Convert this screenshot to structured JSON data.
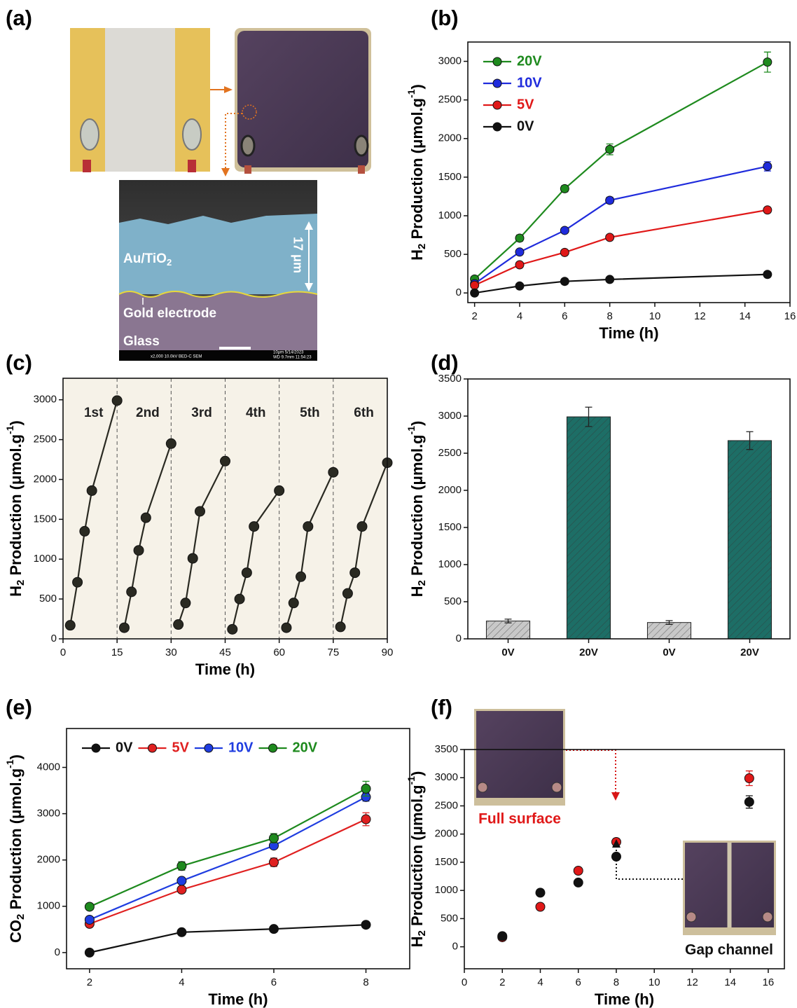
{
  "panel_a": {
    "label": "(a)",
    "sem_labels": {
      "material": [
        "Au/TiO",
        "2"
      ],
      "thickness": "17 μm",
      "electrode": "Gold electrode",
      "substrate": "Glass"
    },
    "sem_footer": {
      "left": "x2,000   10.0kV BED-C   SEM",
      "right": "10μm  5/14/2023",
      "right2": "WD 9.7mm  11:54:23"
    }
  },
  "chart_data": [
    {
      "type": "line",
      "label": "(b)",
      "ylabel": [
        "H",
        "2",
        " Production (μmol.g",
        "-1",
        ")"
      ],
      "xlabel": "Time (h)",
      "x": [
        2,
        4,
        6,
        8,
        15
      ],
      "xlim": [
        1.7,
        16
      ],
      "xticks": [
        2,
        4,
        6,
        8,
        10,
        12,
        14,
        16
      ],
      "ylim": [
        -125,
        3250
      ],
      "yticks": [
        0,
        500,
        1000,
        1500,
        2000,
        2500,
        3000
      ],
      "legend": "upper left",
      "legend_orientation": "vertical",
      "series": [
        {
          "name": "20V",
          "color": "#1e8a1e",
          "values": [
            180,
            710,
            1350,
            1860,
            2990
          ],
          "errors": [
            30,
            40,
            40,
            70,
            130
          ]
        },
        {
          "name": "10V",
          "color": "#1f2bdc",
          "values": [
            120,
            530,
            810,
            1200,
            1640
          ],
          "errors": [
            20,
            30,
            30,
            40,
            60
          ]
        },
        {
          "name": "5V",
          "color": "#e01818",
          "values": [
            100,
            365,
            525,
            720,
            1075
          ],
          "errors": [
            20,
            20,
            20,
            20,
            30
          ]
        },
        {
          "name": "0V",
          "color": "#111111",
          "values": [
            0,
            90,
            150,
            175,
            240
          ],
          "errors": [
            10,
            10,
            10,
            10,
            10
          ]
        }
      ]
    },
    {
      "type": "line",
      "label": "(c)",
      "ylabel": [
        "H",
        "2",
        " Production (μmol.g",
        "-1",
        ")"
      ],
      "xlabel": "Time (h)",
      "xlim": [
        0,
        90
      ],
      "xticks": [
        0,
        15,
        30,
        45,
        60,
        75,
        90
      ],
      "ylim": [
        0,
        3270
      ],
      "yticks": [
        0,
        500,
        1000,
        1500,
        2000,
        2500,
        3000
      ],
      "background": "#f6f2e8",
      "vlines": [
        15,
        30,
        45,
        60,
        75
      ],
      "series": [
        {
          "name": "1st",
          "color": "#2a2a22",
          "x": [
            2,
            4,
            6,
            8,
            15
          ],
          "values": [
            170,
            710,
            1350,
            1860,
            2990
          ]
        },
        {
          "name": "2nd",
          "color": "#2a2a22",
          "x": [
            17,
            19,
            21,
            23,
            30
          ],
          "values": [
            140,
            590,
            1110,
            1520,
            2450
          ]
        },
        {
          "name": "3rd",
          "color": "#2a2a22",
          "x": [
            32,
            34,
            36,
            38,
            45
          ],
          "values": [
            180,
            450,
            1010,
            1600,
            2230
          ]
        },
        {
          "name": "4th",
          "color": "#2a2a22",
          "x": [
            47,
            49,
            51,
            53,
            60
          ],
          "values": [
            120,
            500,
            830,
            1410,
            1860
          ]
        },
        {
          "name": "5th",
          "color": "#2a2a22",
          "x": [
            62,
            64,
            66,
            68,
            75
          ],
          "values": [
            140,
            450,
            780,
            1410,
            2090
          ]
        },
        {
          "name": "6th",
          "color": "#2a2a22",
          "x": [
            77,
            79,
            81,
            83,
            90
          ],
          "values": [
            150,
            570,
            830,
            1410,
            2210
          ]
        }
      ]
    },
    {
      "type": "bar",
      "label": "(d)",
      "ylabel": [
        "H",
        "2",
        " Production (μmol.g",
        "-1",
        ")"
      ],
      "categories": [
        "0V",
        "20V",
        "0V",
        "20V"
      ],
      "values": [
        240,
        2990,
        220,
        2670
      ],
      "errors": [
        25,
        130,
        25,
        120
      ],
      "colors": [
        "#c8c8c8",
        "#1d6e66",
        "#c8c8c8",
        "#1d6e66"
      ],
      "ylim": [
        0,
        3500
      ],
      "yticks": [
        0,
        500,
        1000,
        1500,
        2000,
        2500,
        3000,
        3500
      ]
    },
    {
      "type": "line",
      "label": "(e)",
      "ylabel": [
        "CO",
        "2",
        " Production (μmol.g",
        "-1",
        ")"
      ],
      "xlabel": "Time (h)",
      "x": [
        2,
        4,
        6,
        8
      ],
      "xlim": [
        1.5,
        8.95
      ],
      "xticks": [
        2,
        4,
        6,
        8
      ],
      "ylim": [
        -350,
        4840
      ],
      "yticks": [
        0,
        1000,
        2000,
        3000,
        4000
      ],
      "legend": "upper left",
      "legend_orientation": "horizontal",
      "series": [
        {
          "name": "0V",
          "color": "#111111",
          "values": [
            0,
            440,
            510,
            600
          ],
          "errors": [
            10,
            20,
            20,
            20
          ]
        },
        {
          "name": "5V",
          "color": "#e02020",
          "values": [
            620,
            1360,
            1950,
            2880
          ],
          "errors": [
            20,
            30,
            90,
            140
          ]
        },
        {
          "name": "10V",
          "color": "#1f3de0",
          "values": [
            710,
            1550,
            2310,
            3360
          ],
          "errors": [
            20,
            30,
            40,
            90
          ]
        },
        {
          "name": "20V",
          "color": "#1e8a1e",
          "values": [
            990,
            1870,
            2470,
            3540
          ],
          "errors": [
            20,
            90,
            100,
            160
          ]
        }
      ]
    },
    {
      "type": "scatter",
      "label": "(f)",
      "ylabel": [
        "H",
        "2",
        " Production (μmol.g",
        "-1",
        ")"
      ],
      "xlabel": "Time (h)",
      "x": [
        2,
        4,
        6,
        8,
        15
      ],
      "xlim": [
        0,
        16.85
      ],
      "xticks": [
        0,
        2,
        4,
        6,
        8,
        10,
        12,
        14,
        16
      ],
      "ylim": [
        -390,
        3500
      ],
      "yticks": [
        0,
        500,
        1000,
        1500,
        2000,
        2500,
        3000,
        3500
      ],
      "series": [
        {
          "name": "Full surface",
          "color": "#e01818",
          "values": [
            170,
            710,
            1350,
            1860,
            2990
          ],
          "errors": [
            15,
            20,
            30,
            60,
            130
          ]
        },
        {
          "name": "Gap channel",
          "color": "#111111",
          "values": [
            190,
            960,
            1140,
            1600,
            2570
          ],
          "errors": [
            15,
            20,
            30,
            50,
            110
          ]
        }
      ]
    }
  ]
}
